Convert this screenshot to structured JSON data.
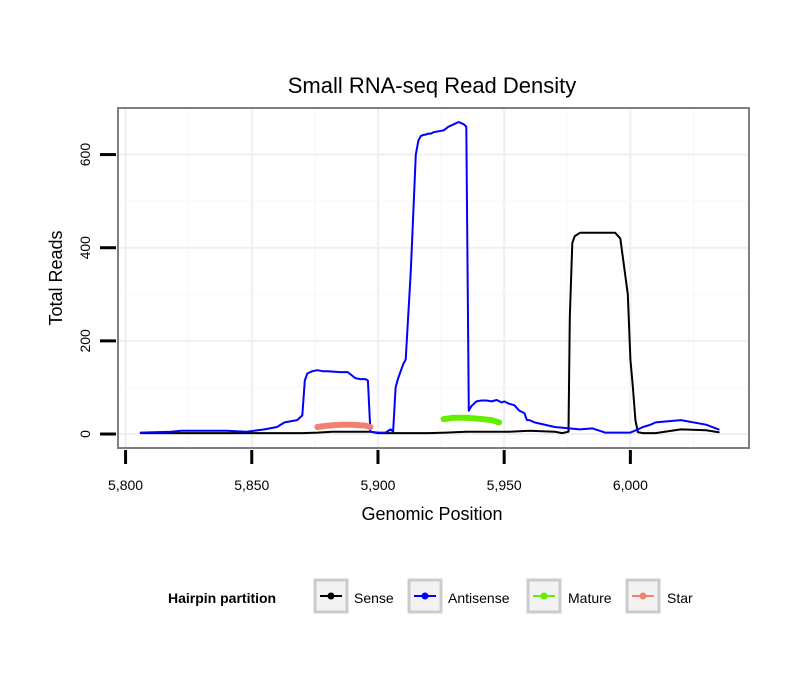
{
  "chart_data": {
    "type": "line",
    "title": "Small RNA-seq Read Density",
    "xlabel": "Genomic Position",
    "ylabel": "Total Reads",
    "xlim": [
      5797,
      6047
    ],
    "ylim": [
      -30,
      700
    ],
    "x_ticks": [
      5800,
      5850,
      5900,
      5950,
      6000
    ],
    "x_tick_labels": [
      "5,800",
      "5,850",
      "5,900",
      "5,950",
      "6,000"
    ],
    "y_ticks": [
      0,
      200,
      400,
      600
    ],
    "y_tick_labels": [
      "0",
      "200",
      "400",
      "600"
    ],
    "grid": true,
    "legend": {
      "title": "Hairpin partition",
      "position": "bottom",
      "entries": [
        "Sense",
        "Antisense",
        "Mature",
        "Star"
      ]
    },
    "series": [
      {
        "name": "Sense",
        "color": "#000000",
        "width": 2,
        "x": [
          5806,
          5820,
          5840,
          5850,
          5860,
          5870,
          5876,
          5882,
          5890,
          5897,
          5900,
          5910,
          5920,
          5927,
          5935,
          5940,
          5945,
          5949,
          5952,
          5960,
          5970,
          5973,
          5975.5,
          5976,
          5977,
          5978,
          5980,
          5985,
          5990,
          5994,
          5996,
          5997,
          5999,
          6000,
          6001,
          6002,
          6003,
          6005,
          6010,
          6020,
          6030,
          6035
        ],
        "y": [
          2,
          2,
          2,
          2,
          2,
          2,
          3,
          5,
          5,
          5,
          2,
          2,
          2,
          3,
          5,
          5,
          5,
          5,
          5,
          7,
          5,
          2,
          5,
          250,
          410,
          425,
          432,
          432,
          432,
          432,
          420,
          380,
          300,
          160,
          100,
          30,
          4,
          2,
          2,
          10,
          8,
          4
        ]
      },
      {
        "name": "Antisense",
        "color": "#0000ff",
        "width": 2,
        "x": [
          5806,
          5818,
          5822,
          5830,
          5840,
          5848,
          5855,
          5860,
          5863,
          5868,
          5870,
          5871,
          5872,
          5874,
          5876,
          5878,
          5880,
          5885,
          5888,
          5891,
          5893,
          5895,
          5896,
          5897,
          5900,
          5903,
          5905,
          5906,
          5907,
          5908,
          5910,
          5911,
          5913,
          5915,
          5916,
          5917,
          5918,
          5919,
          5920,
          5921,
          5922,
          5924,
          5926,
          5928,
          5930,
          5932,
          5934,
          5935,
          5936,
          5937,
          5938,
          5939,
          5941,
          5943,
          5945,
          5947,
          5949,
          5950,
          5952,
          5954,
          5956,
          5958,
          5959,
          5960,
          5962,
          5970,
          5980,
          5985,
          5990,
          5995,
          5998,
          6000,
          6003,
          6005,
          6008,
          6010,
          6020,
          6030,
          6035
        ],
        "y": [
          3,
          5,
          7,
          7,
          7,
          5,
          10,
          15,
          25,
          30,
          40,
          115,
          130,
          135,
          137,
          135,
          135,
          133,
          133,
          120,
          118,
          118,
          115,
          5,
          3,
          3,
          10,
          5,
          100,
          120,
          150,
          160,
          350,
          600,
          630,
          640,
          642,
          643,
          645,
          645,
          648,
          650,
          652,
          660,
          665,
          670,
          665,
          660,
          50,
          60,
          65,
          70,
          72,
          72,
          70,
          73,
          68,
          70,
          65,
          62,
          50,
          45,
          30,
          30,
          25,
          15,
          10,
          12,
          3,
          3,
          3,
          3,
          10,
          15,
          20,
          25,
          30,
          20,
          10
        ]
      },
      {
        "name": "Mature",
        "color": "#66ee00",
        "width": 6,
        "x": [
          5926,
          5930,
          5935,
          5940,
          5945,
          5948
        ],
        "y": [
          32,
          35,
          35,
          33,
          30,
          25
        ]
      },
      {
        "name": "Star",
        "color": "#f08070",
        "width": 6,
        "x": [
          5876,
          5880,
          5885,
          5890,
          5895,
          5897
        ],
        "y": [
          15,
          18,
          20,
          20,
          18,
          15
        ]
      }
    ]
  }
}
